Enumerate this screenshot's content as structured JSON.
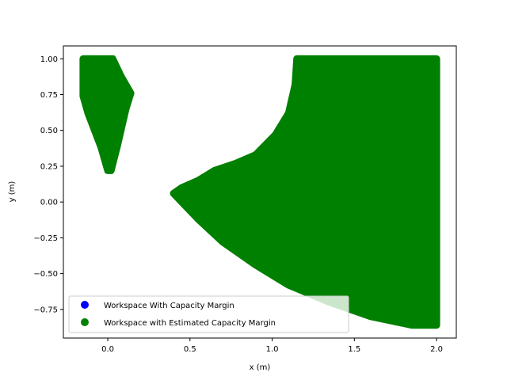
{
  "chart_data": {
    "type": "scatter",
    "title": "",
    "xlabel": "x (m)",
    "ylabel": "y (m)",
    "xlim": [
      -0.27,
      2.12
    ],
    "ylim": [
      -0.95,
      1.09
    ],
    "grid": false,
    "x_ticks": [
      {
        "value": 0.0,
        "label": "0.0"
      },
      {
        "value": 0.5,
        "label": "0.5"
      },
      {
        "value": 1.0,
        "label": "1.0"
      },
      {
        "value": 1.5,
        "label": "1.5"
      },
      {
        "value": 2.0,
        "label": "2.0"
      }
    ],
    "y_ticks": [
      {
        "value": -0.75,
        "label": "−0.75"
      },
      {
        "value": -0.5,
        "label": "−0.50"
      },
      {
        "value": -0.25,
        "label": "−0.25"
      },
      {
        "value": 0.0,
        "label": "0.00"
      },
      {
        "value": 0.25,
        "label": "0.25"
      },
      {
        "value": 0.5,
        "label": "0.50"
      },
      {
        "value": 0.75,
        "label": "0.75"
      },
      {
        "value": 1.0,
        "label": "1.00"
      }
    ],
    "legend": {
      "placement": "lower-left",
      "entries": [
        {
          "label": "Workspace With Capacity Margin",
          "color": "#0000ff"
        },
        {
          "label": "Workspace with Estimated Capacity Margin",
          "color": "#008000"
        }
      ]
    },
    "series": [
      {
        "name": "Workspace With Capacity Margin",
        "color": "#0000ff",
        "regions": []
      },
      {
        "name": "Workspace with Estimated Capacity Margin",
        "color": "#008000",
        "regions": [
          {
            "boundary": [
              [
                -0.15,
                1.0
              ],
              [
                0.03,
                1.0
              ],
              [
                0.08,
                0.88
              ],
              [
                0.14,
                0.76
              ],
              [
                0.11,
                0.65
              ],
              [
                0.06,
                0.4
              ],
              [
                0.02,
                0.22
              ],
              [
                0.0,
                0.22
              ],
              [
                -0.04,
                0.38
              ],
              [
                -0.12,
                0.62
              ],
              [
                -0.15,
                0.74
              ]
            ]
          },
          {
            "boundary": [
              [
                1.15,
                1.0
              ],
              [
                2.0,
                1.0
              ],
              [
                2.0,
                -0.86
              ],
              [
                1.85,
                -0.86
              ],
              [
                1.6,
                -0.8
              ],
              [
                1.35,
                -0.7
              ],
              [
                1.1,
                -0.58
              ],
              [
                0.9,
                -0.44
              ],
              [
                0.7,
                -0.28
              ],
              [
                0.55,
                -0.12
              ],
              [
                0.4,
                0.06
              ],
              [
                0.45,
                0.1
              ],
              [
                0.55,
                0.15
              ],
              [
                0.65,
                0.22
              ],
              [
                0.78,
                0.27
              ],
              [
                0.9,
                0.33
              ],
              [
                1.02,
                0.47
              ],
              [
                1.1,
                0.62
              ],
              [
                1.14,
                0.82
              ]
            ]
          }
        ]
      }
    ]
  }
}
